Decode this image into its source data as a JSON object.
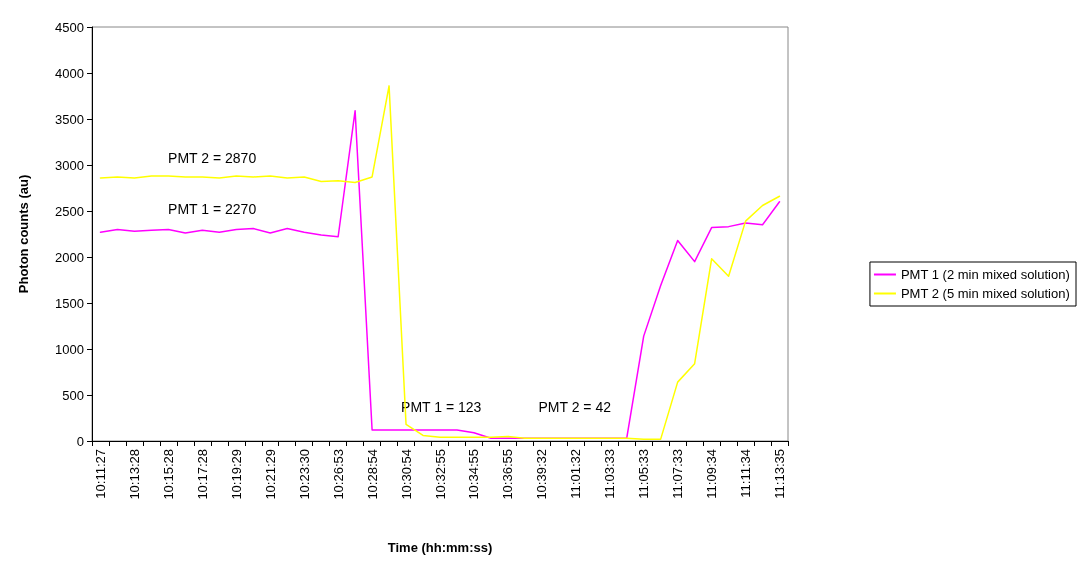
{
  "chart_data": {
    "type": "line",
    "xlabel": "Time (hh:mm:ss)",
    "ylabel": "Photon counts (au)",
    "categories": [
      "10:11:27",
      null,
      "10:13:28",
      null,
      "10:15:28",
      null,
      "10:17:28",
      null,
      "10:19:29",
      null,
      "10:21:29",
      null,
      "10:23:30",
      null,
      "10:26:53",
      null,
      "10:28:54",
      null,
      "10:30:54",
      null,
      "10:32:55",
      null,
      "10:34:55",
      null,
      "10:36:55",
      null,
      "10:39:32",
      null,
      "11:01:32",
      null,
      "11:03:33",
      null,
      "11:05:33",
      null,
      "11:07:33",
      null,
      "11:09:34",
      null,
      "11:11:34",
      null,
      "11:13:35"
    ],
    "series": [
      {
        "name": "PMT 1 (2 min mixed solution)",
        "color": "#ff00ff",
        "values": [
          2270,
          2300,
          2280,
          2290,
          2300,
          2260,
          2290,
          2270,
          2300,
          2310,
          2260,
          2310,
          2270,
          2240,
          2220,
          3590,
          120,
          120,
          120,
          120,
          120,
          120,
          90,
          30,
          30,
          30,
          30,
          30,
          30,
          30,
          30,
          30,
          1140,
          1690,
          2180,
          1950,
          2320,
          2330,
          2370,
          2350,
          2600
        ]
      },
      {
        "name": "PMT 2 (5 min mixed solution)",
        "color": "#ffff00",
        "values": [
          2860,
          2870,
          2860,
          2880,
          2880,
          2870,
          2870,
          2860,
          2880,
          2870,
          2880,
          2860,
          2870,
          2820,
          2830,
          2810,
          2870,
          3860,
          180,
          60,
          40,
          40,
          40,
          40,
          50,
          30,
          30,
          30,
          30,
          30,
          30,
          30,
          20,
          20,
          640,
          840,
          1980,
          1790,
          2390,
          2560,
          2660
        ]
      }
    ],
    "ylim": [
      0,
      4500
    ],
    "yticks": [
      0,
      500,
      1000,
      1500,
      2000,
      2500,
      3000,
      3500,
      4000,
      4500
    ],
    "annotations": [
      "PMT 2 = 2870",
      "PMT 1 = 2270",
      "PMT 1 = 123",
      "PMT 2 = 42"
    ],
    "legend": "right",
    "grid": false,
    "marker": "none",
    "line_style": "solid"
  }
}
